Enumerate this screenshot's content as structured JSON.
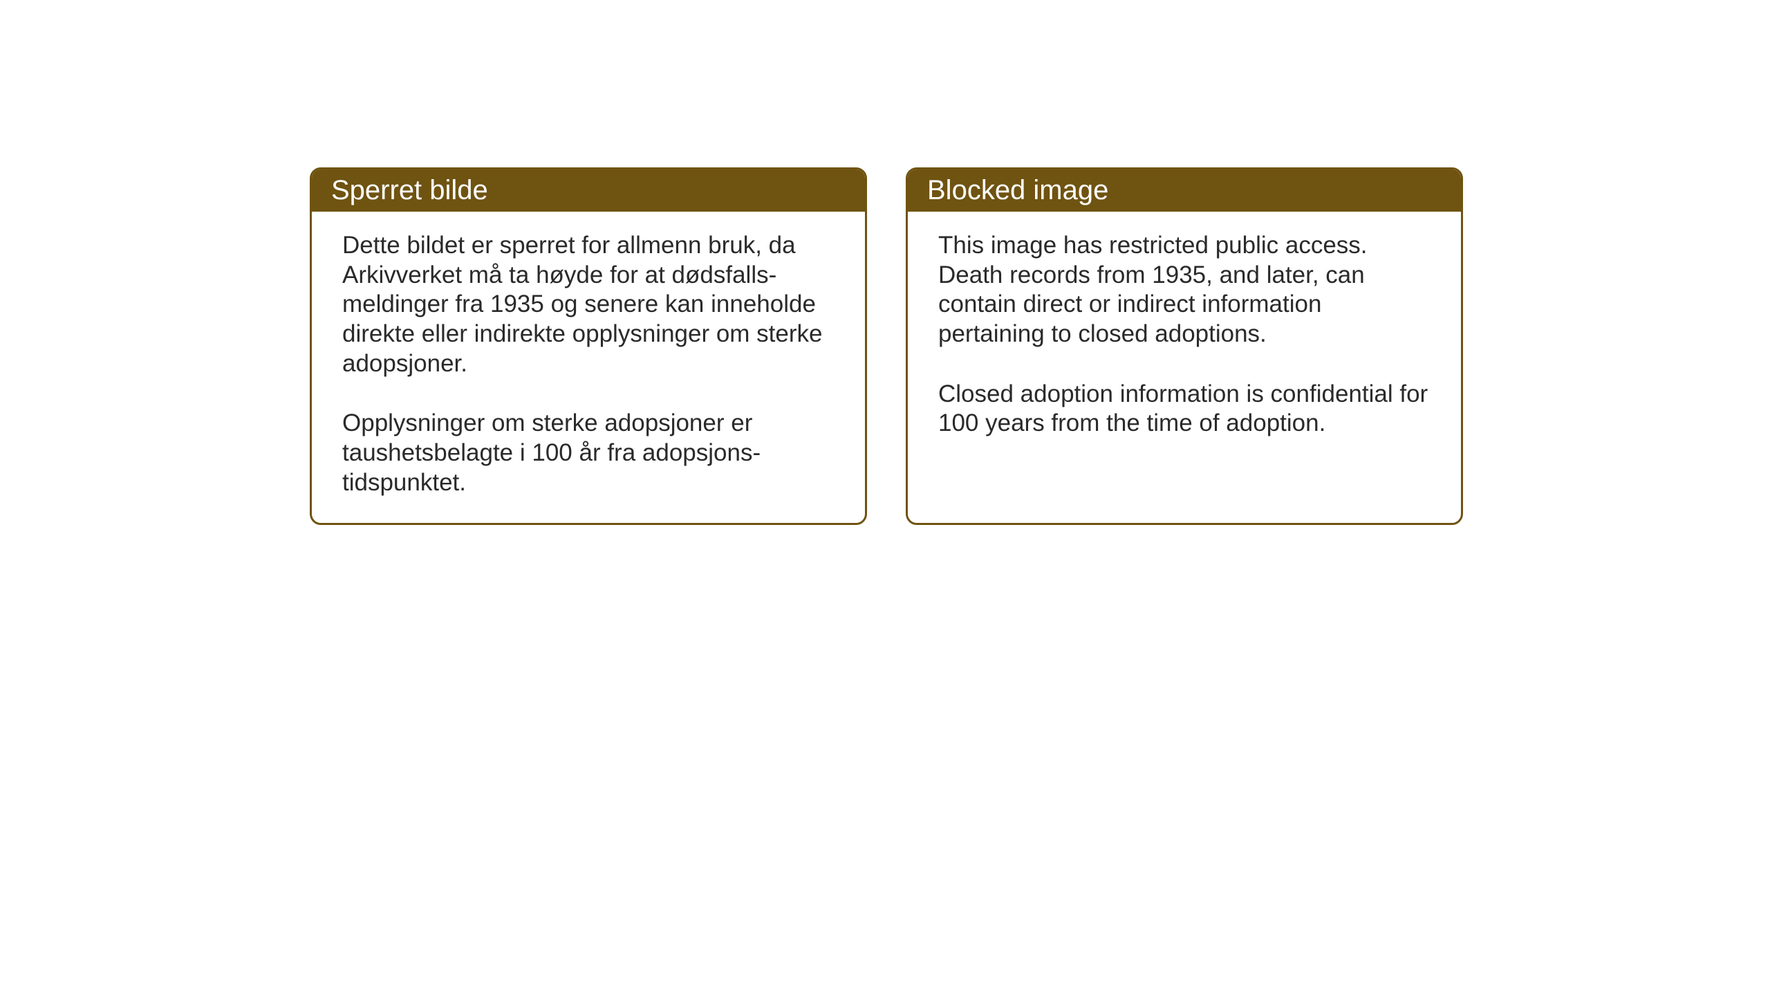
{
  "notices": {
    "norwegian": {
      "title": "Sperret bilde",
      "paragraph1": "Dette bildet er sperret for allmenn bruk, da Arkivverket må ta høyde for at dødsfalls-meldinger fra 1935 og senere kan inneholde direkte eller indirekte opplysninger om sterke adopsjoner.",
      "paragraph2": "Opplysninger om sterke adopsjoner er taushetsbelagte i 100 år fra adopsjons-tidspunktet."
    },
    "english": {
      "title": "Blocked image",
      "paragraph1": "This image has restricted public access. Death records from 1935, and later, can contain direct or indirect information pertaining to closed adoptions.",
      "paragraph2": "Closed adoption information is confidential for 100 years from the time of adoption."
    }
  },
  "styling": {
    "header_background": "#6f5311",
    "header_text_color": "#ffffff",
    "border_color": "#6f5311",
    "body_background": "#ffffff",
    "body_text_color": "#2a2a2a",
    "title_fontsize": 40,
    "body_fontsize": 35,
    "border_radius": 16,
    "border_width": 3
  }
}
